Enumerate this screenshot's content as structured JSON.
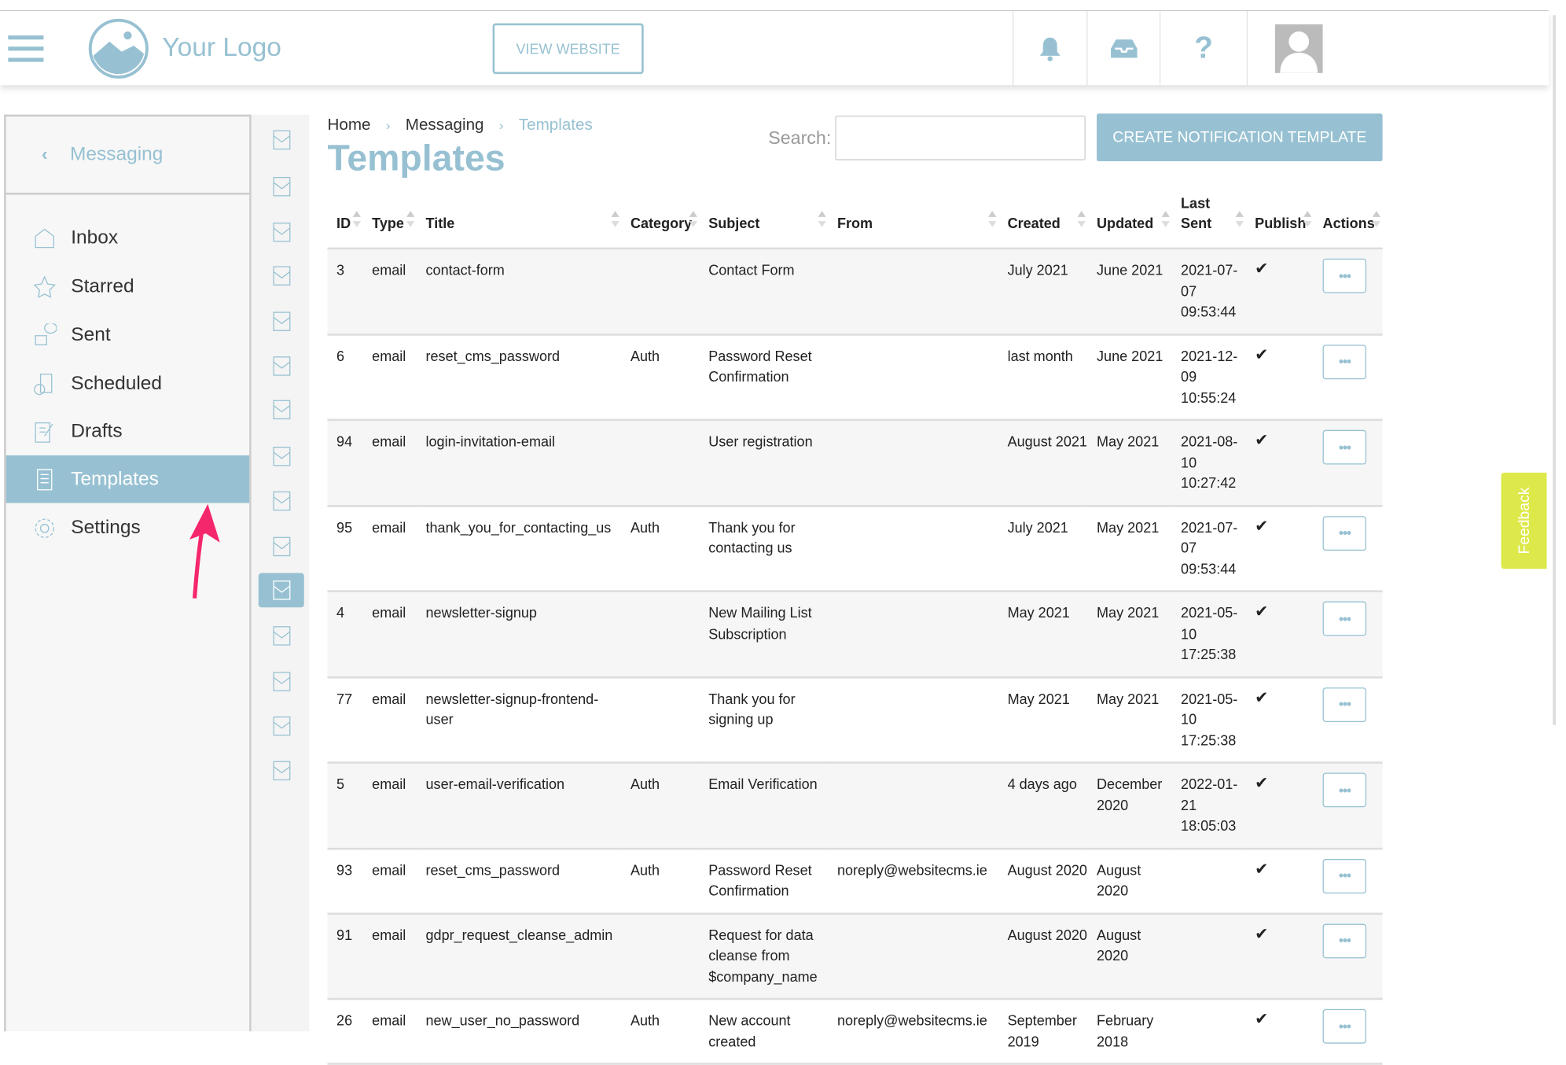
{
  "header": {
    "logo_text": "Your Logo",
    "view_website_label": "VIEW WEBSITE",
    "icons": [
      "menu-icon",
      "bell-icon",
      "inbox-tray-icon",
      "help-icon",
      "avatar"
    ]
  },
  "sidebar": {
    "back_label": "Messaging",
    "items": [
      {
        "label": "Inbox",
        "icon": "inbox-icon"
      },
      {
        "label": "Starred",
        "icon": "starred-icon"
      },
      {
        "label": "Sent",
        "icon": "sent-icon"
      },
      {
        "label": "Scheduled",
        "icon": "scheduled-icon"
      },
      {
        "label": "Drafts",
        "icon": "drafts-icon"
      },
      {
        "label": "Templates",
        "icon": "templates-icon",
        "active": true
      },
      {
        "label": "Settings",
        "icon": "settings-icon"
      }
    ]
  },
  "breadcrumb": [
    "Home",
    "Messaging",
    "Templates"
  ],
  "page_title": "Templates",
  "search": {
    "label": "Search:",
    "value": ""
  },
  "create_button_label": "CREATE NOTIFICATION TEMPLATE",
  "feedback_label": "Feedback",
  "colors": {
    "accent": "#97c1d2",
    "feedback": "#dde94b",
    "arrow": "#f5276c"
  },
  "table": {
    "headers": [
      "ID",
      "Type",
      "Title",
      "Category",
      "Subject",
      "From",
      "Created",
      "Updated",
      "Last Sent",
      "Publish",
      "Actions"
    ],
    "rows": [
      {
        "id": "3",
        "type": "email",
        "title": "contact-form",
        "category": "",
        "subject": "Contact Form",
        "from": "",
        "created": "July 2021",
        "updated": "June 2021",
        "last_sent": "2021-07-07 09:53:44",
        "publish": "✔"
      },
      {
        "id": "6",
        "type": "email",
        "title": "reset_cms_password",
        "category": "Auth",
        "subject": "Password Reset Confirmation",
        "from": "",
        "created": "last month",
        "updated": "June 2021",
        "last_sent": "2021-12-09 10:55:24",
        "publish": "✔"
      },
      {
        "id": "94",
        "type": "email",
        "title": "login-invitation-email",
        "category": "",
        "subject": "User registration",
        "from": "",
        "created": "August 2021",
        "updated": "May 2021",
        "last_sent": "2021-08-10 10:27:42",
        "publish": "✔"
      },
      {
        "id": "95",
        "type": "email",
        "title": "thank_you_for_contacting_us",
        "category": "Auth",
        "subject": "Thank you for contacting us",
        "from": "",
        "created": "July 2021",
        "updated": "May 2021",
        "last_sent": "2021-07-07 09:53:44",
        "publish": "✔"
      },
      {
        "id": "4",
        "type": "email",
        "title": "newsletter-signup",
        "category": "",
        "subject": "New Mailing List Subscription",
        "from": "",
        "created": "May 2021",
        "updated": "May 2021",
        "last_sent": "2021-05-10 17:25:38",
        "publish": "✔"
      },
      {
        "id": "77",
        "type": "email",
        "title": "newsletter-signup-frontend-user",
        "category": "",
        "subject": "Thank you for signing up",
        "from": "",
        "created": "May 2021",
        "updated": "May 2021",
        "last_sent": "2021-05-10 17:25:38",
        "publish": "✔"
      },
      {
        "id": "5",
        "type": "email",
        "title": "user-email-verification",
        "category": "Auth",
        "subject": "Email Verification",
        "from": "",
        "created": "4 days ago",
        "updated": "December 2020",
        "last_sent": "2022-01-21 18:05:03",
        "publish": "✔"
      },
      {
        "id": "93",
        "type": "email",
        "title": "reset_cms_password",
        "category": "Auth",
        "subject": "Password Reset Confirmation",
        "from": "noreply@websitecms.ie",
        "created": "August 2020",
        "updated": "August 2020",
        "last_sent": "",
        "publish": "✔"
      },
      {
        "id": "91",
        "type": "email",
        "title": "gdpr_request_cleanse_admin",
        "category": "",
        "subject": "Request for data cleanse from $company_name",
        "from": "",
        "created": "August 2020",
        "updated": "August 2020",
        "last_sent": "",
        "publish": "✔"
      },
      {
        "id": "26",
        "type": "email",
        "title": "new_user_no_password",
        "category": "Auth",
        "subject": "New account created",
        "from": "noreply@websitecms.ie",
        "created": "September 2019",
        "updated": "February 2018",
        "last_sent": "",
        "publish": "✔"
      }
    ],
    "action_label": "•••"
  }
}
